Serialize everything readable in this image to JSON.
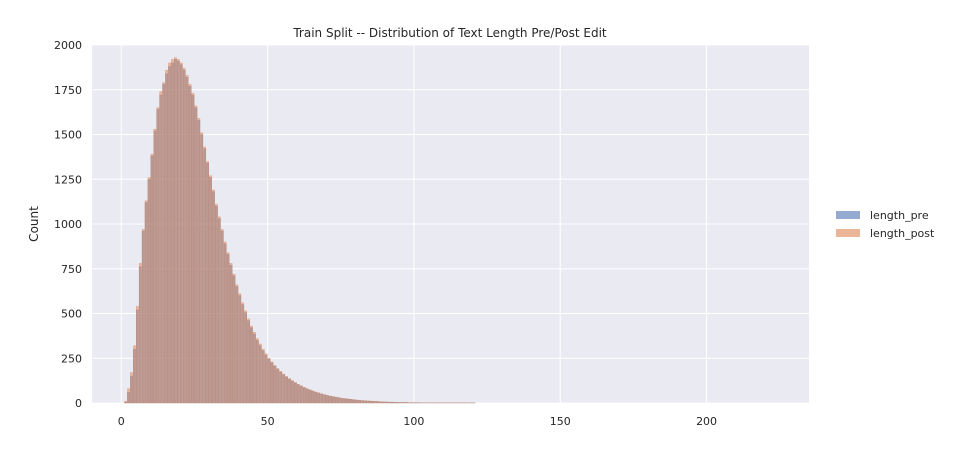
{
  "chart_data": {
    "type": "histogram",
    "title": "Train Split -- Distribution of Text Length Pre/Post Edit",
    "xlabel": "",
    "ylabel": "Count",
    "xlim": [
      -10,
      235
    ],
    "ylim": [
      0,
      2000
    ],
    "xticks": [
      0,
      50,
      100,
      150,
      200
    ],
    "yticks": [
      0,
      250,
      500,
      750,
      1000,
      1250,
      1500,
      1750,
      2000
    ],
    "grid": true,
    "legend_position": "right",
    "bin_width": 1,
    "bin_start": 1,
    "series": [
      {
        "name": "length_pre",
        "color": "#4c72b0",
        "values": [
          5,
          60,
          150,
          300,
          520,
          760,
          960,
          1120,
          1250,
          1380,
          1520,
          1640,
          1720,
          1780,
          1840,
          1880,
          1900,
          1920,
          1910,
          1890,
          1860,
          1820,
          1770,
          1720,
          1650,
          1580,
          1500,
          1420,
          1340,
          1260,
          1180,
          1100,
          1030,
          960,
          890,
          830,
          770,
          710,
          650,
          600,
          550,
          505,
          460,
          420,
          385,
          350,
          320,
          292,
          268,
          245,
          225,
          205,
          188,
          172,
          158,
          145,
          133,
          122,
          112,
          102,
          94,
          86,
          79,
          72,
          66,
          60,
          55,
          50,
          46,
          42,
          38,
          35,
          32,
          29,
          26,
          24,
          22,
          20,
          18,
          16,
          15,
          13,
          12,
          11,
          10,
          9,
          8,
          7,
          6,
          6,
          5,
          5,
          4,
          4,
          3,
          3,
          3,
          2,
          2,
          2,
          2,
          1,
          1,
          1,
          1,
          1,
          1,
          1,
          1,
          1,
          1,
          1,
          1,
          1,
          1,
          1,
          1,
          1,
          1,
          1
        ]
      },
      {
        "name": "length_post",
        "color": "#dd8452",
        "values": [
          10,
          80,
          170,
          320,
          540,
          780,
          970,
          1130,
          1260,
          1390,
          1530,
          1650,
          1740,
          1790,
          1860,
          1900,
          1920,
          1930,
          1920,
          1900,
          1870,
          1830,
          1780,
          1730,
          1660,
          1590,
          1510,
          1430,
          1350,
          1270,
          1190,
          1110,
          1040,
          970,
          900,
          840,
          780,
          720,
          660,
          610,
          560,
          515,
          470,
          430,
          395,
          360,
          330,
          300,
          275,
          250,
          230,
          210,
          193,
          177,
          162,
          149,
          137,
          126,
          115,
          105,
          97,
          88,
          81,
          74,
          68,
          62,
          57,
          52,
          47,
          43,
          39,
          36,
          33,
          30,
          27,
          25,
          23,
          21,
          19,
          17,
          15,
          14,
          13,
          12,
          11,
          10,
          9,
          8,
          7,
          6,
          5,
          5,
          4,
          4,
          3,
          3,
          3,
          2,
          2,
          2,
          2,
          2,
          1,
          1,
          1,
          1,
          1,
          1,
          1,
          1,
          1,
          1,
          1,
          1,
          1,
          1,
          1,
          1,
          1,
          1
        ]
      }
    ]
  }
}
